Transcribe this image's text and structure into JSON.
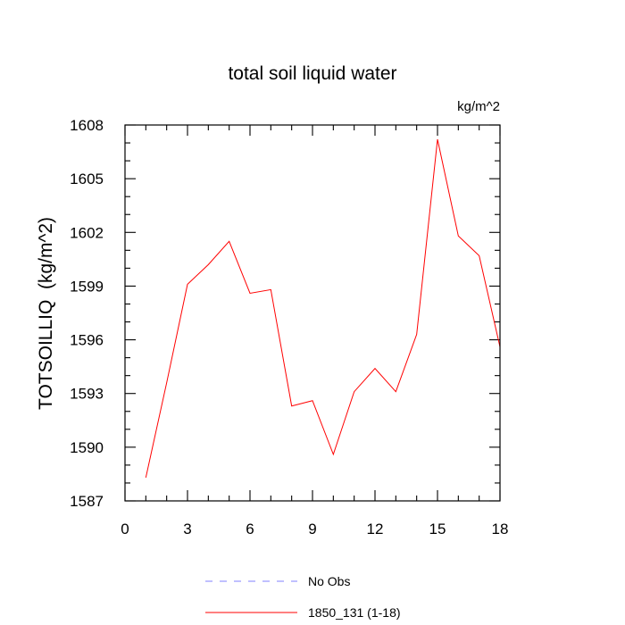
{
  "chart_data": {
    "type": "line",
    "title": "total soil liquid water",
    "units_label": "kg/m^2",
    "xlabel": "",
    "ylabel": "TOTSOILLIQ  (kg/m^2)",
    "xlim": [
      0,
      18
    ],
    "ylim": [
      1587,
      1608
    ],
    "x_ticks": [
      0,
      3,
      6,
      9,
      12,
      15,
      18
    ],
    "y_ticks": [
      1587,
      1590,
      1593,
      1596,
      1599,
      1602,
      1605,
      1608
    ],
    "grid": false,
    "legend_position": "bottom",
    "series": [
      {
        "name": "No Obs",
        "color": "#8080ff",
        "style": "dashed",
        "x": [],
        "y": []
      },
      {
        "name": "1850_131 (1-18)",
        "color": "#ff0000",
        "style": "solid",
        "x": [
          1,
          2,
          3,
          4,
          5,
          6,
          7,
          8,
          9,
          10,
          11,
          12,
          13,
          14,
          15,
          16,
          17,
          18
        ],
        "y": [
          1588.3,
          1593.6,
          1599.1,
          1600.2,
          1601.5,
          1598.6,
          1598.8,
          1592.3,
          1592.6,
          1589.6,
          1593.1,
          1594.4,
          1593.1,
          1596.3,
          1607.2,
          1601.8,
          1600.7,
          1595.6
        ]
      }
    ]
  }
}
